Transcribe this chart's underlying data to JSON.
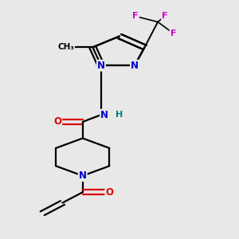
{
  "background_color": "#e8e8e8",
  "bond_color": "#000000",
  "atom_colors": {
    "N": "#0000cc",
    "O": "#dd0000",
    "F": "#cc00cc",
    "C": "#000000",
    "H": "#008080"
  },
  "figsize": [
    3.0,
    3.0
  ],
  "dpi": 100,
  "xlim": [
    0.15,
    0.85
  ],
  "ylim": [
    0.0,
    1.0
  ]
}
